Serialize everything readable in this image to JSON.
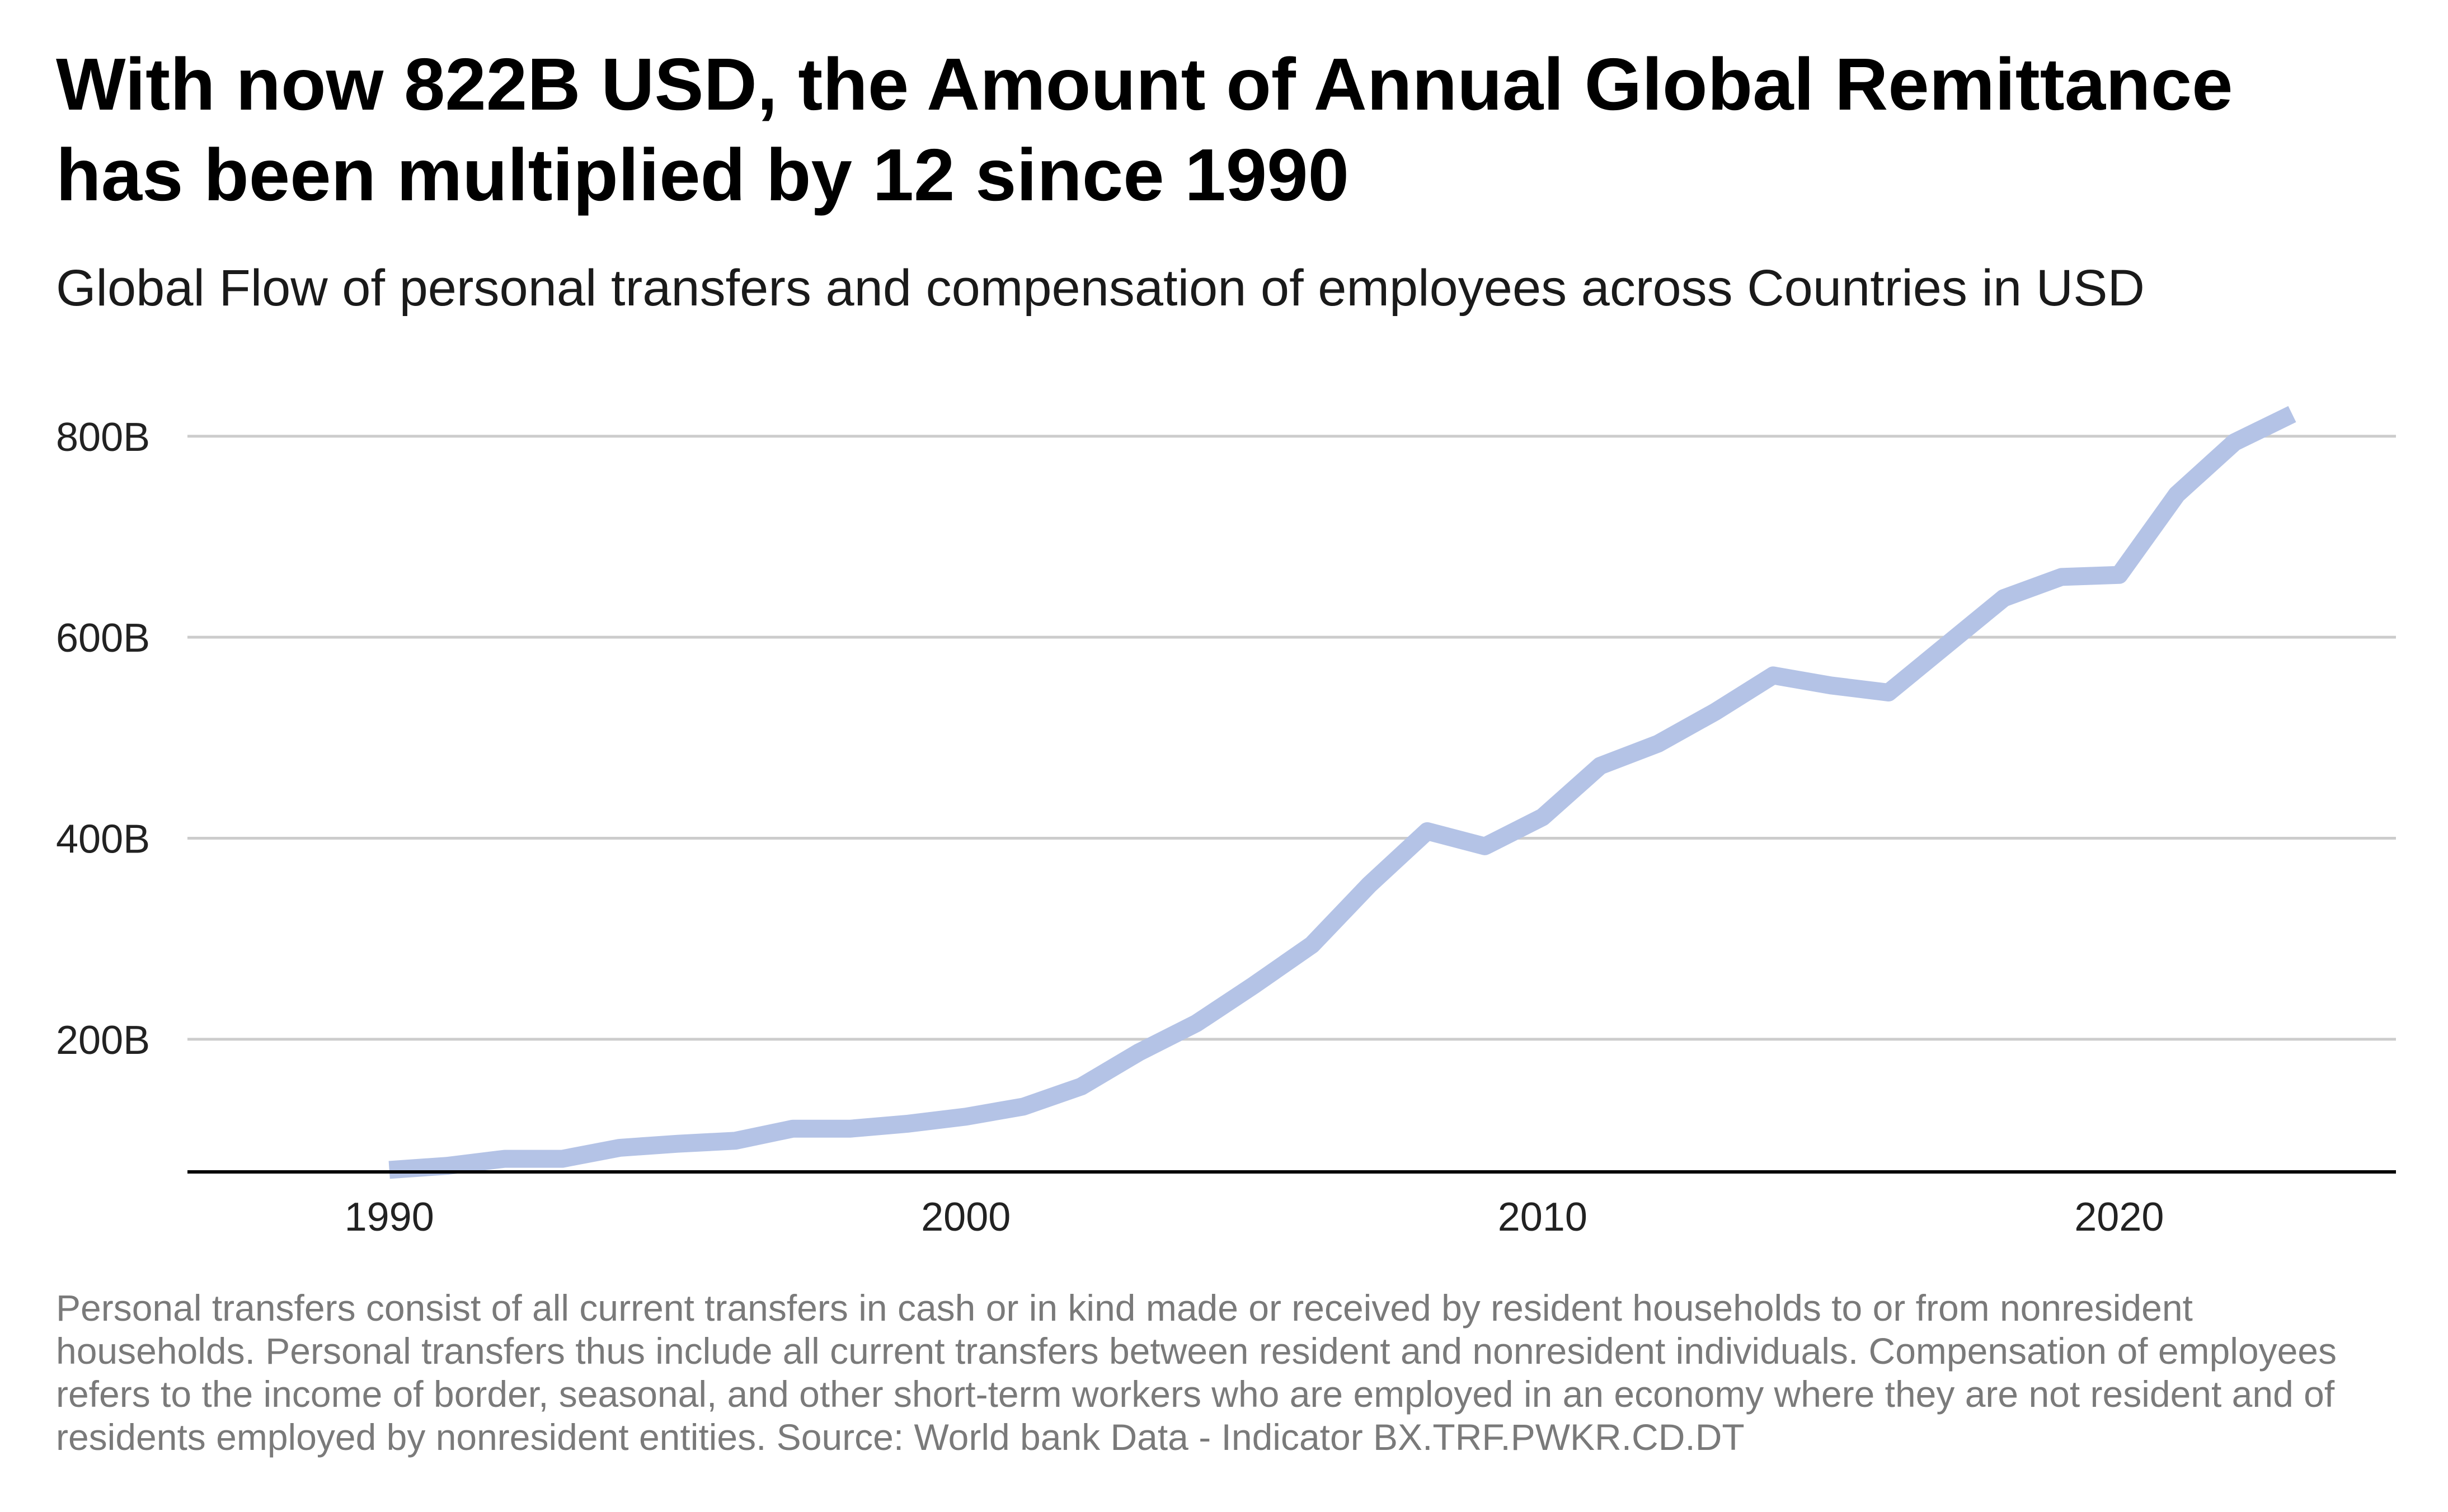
{
  "title": "With now 822B USD, the Amount of Annual Global Remittance has been multiplied by 12 since 1990",
  "subtitle": "Global Flow of personal transfers and compensation of employees across Countries in USD",
  "footnote": "Personal transfers consist of all current transfers in cash or in kind made or received by resident households to or from nonresident households. Personal transfers thus include all current transfers between resident and nonresident individuals. Compensation of employees refers to the income of border, seasonal, and other short-term workers who are employed in an economy where they are not resident and of residents employed by nonresident entities. Source: World bank Data - Indicator BX.TRF.PWKR.CD.DT",
  "colors": {
    "line": "#b4c3e6",
    "grid": "#cccccc",
    "axis": "#000000"
  },
  "chart_data": {
    "type": "line",
    "title": "With now 822B USD, the Amount of Annual Global Remittance has been multiplied by 12 since 1990",
    "subtitle": "Global Flow of personal transfers and compensation of employees across Countries in USD",
    "xlabel": "",
    "ylabel": "",
    "x_ticks": [
      1990,
      2000,
      2010,
      2020
    ],
    "y_ticks": [
      200,
      400,
      600,
      800
    ],
    "y_tick_labels": [
      "200B",
      "400B",
      "600B",
      "800B"
    ],
    "xlim": [
      1986.5,
      2024.8
    ],
    "ylim": [
      68,
      850
    ],
    "grid": true,
    "legend": "none",
    "series": [
      {
        "x": [
          1990,
          1991,
          1992,
          1993,
          1994,
          1995,
          1996,
          1997,
          1998,
          1999,
          2000,
          2001,
          2002,
          2003,
          2004,
          2005,
          2006,
          2007,
          2008,
          2009,
          2010,
          2011,
          2012,
          2013,
          2014,
          2015,
          2016,
          2017,
          2018,
          2019,
          2020,
          2021,
          2022,
          2023
        ],
        "values": [
          70,
          74,
          81,
          81,
          92,
          96,
          99,
          111,
          111,
          116,
          123,
          133,
          153,
          187,
          216,
          254,
          294,
          354,
          407,
          392,
          421,
          472,
          494,
          526,
          562,
          552,
          545,
          592,
          639,
          660,
          662,
          742,
          794,
          822
        ]
      }
    ]
  }
}
